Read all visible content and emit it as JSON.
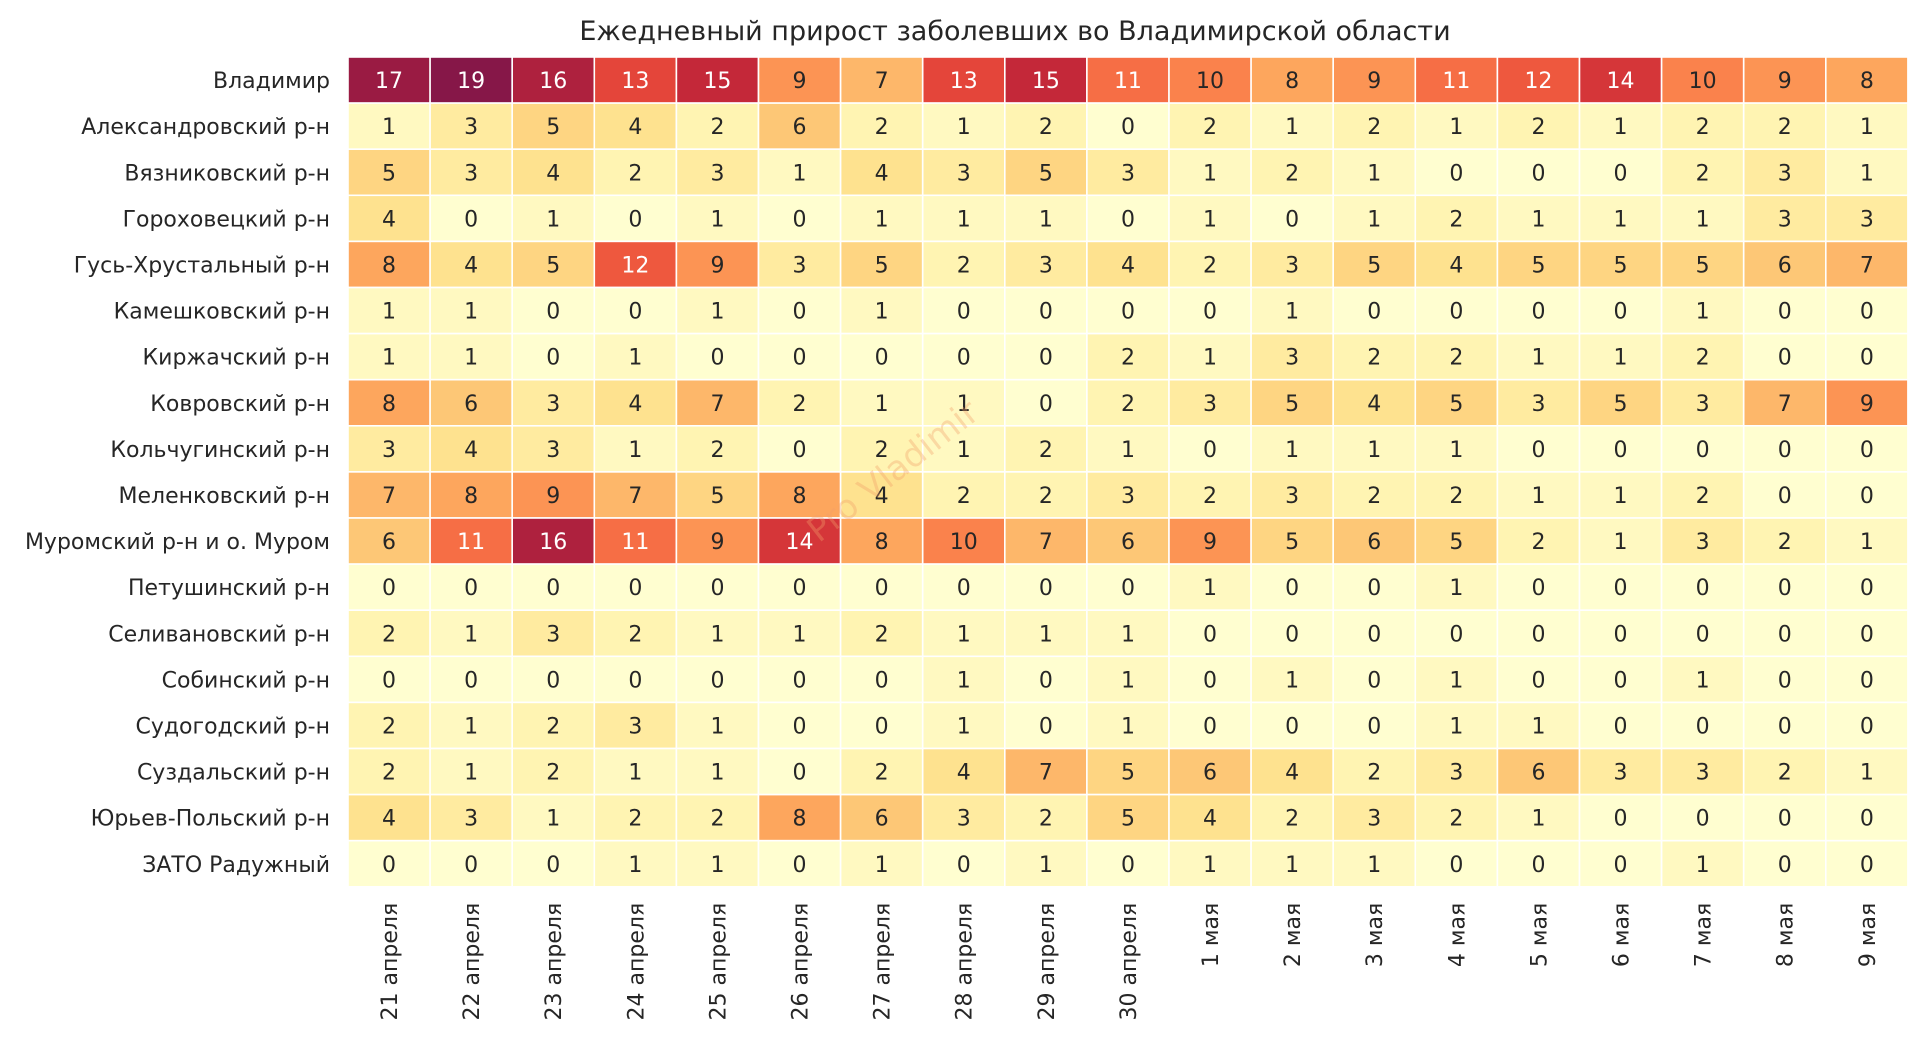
{
  "chart_data": {
    "type": "heatmap",
    "title": "Ежедневный прирост заболевших во Владимирской области",
    "watermark": "Pro Vladimir",
    "color_scale": {
      "min": 0,
      "max": 19,
      "stops": [
        "#fffed0",
        "#fff3b0",
        "#fee08b",
        "#fdc272",
        "#fd9f58",
        "#f97748",
        "#e94a3a",
        "#c92a38",
        "#9b1b43",
        "#861748"
      ]
    },
    "columns": [
      "21 апреля",
      "22 апреля",
      "23 апреля",
      "24 апреля",
      "25 апреля",
      "26 апреля",
      "27 апреля",
      "28 апреля",
      "29 апреля",
      "30 апреля",
      "1 мая",
      "2 мая",
      "3 мая",
      "4 мая",
      "5 мая",
      "6 мая",
      "7 мая",
      "8 мая",
      "9 мая"
    ],
    "rows": [
      "Владимир",
      "Александровский р-н",
      "Вязниковский р-н",
      "Гороховецкий р-н",
      "Гусь-Хрустальный р-н",
      "Камешковский р-н",
      "Киржачский р-н",
      "Ковровский р-н",
      "Кольчугинский р-н",
      "Меленковский р-н",
      "Муромский р-н и о. Муром",
      "Петушинский р-н",
      "Селивановский р-н",
      "Собинский р-н",
      "Судогодский р-н",
      "Суздальский р-н",
      "Юрьев-Польский р-н",
      "ЗАТО Радужный"
    ],
    "values": [
      [
        17,
        19,
        16,
        13,
        15,
        9,
        7,
        13,
        15,
        11,
        10,
        8,
        9,
        11,
        12,
        14,
        10,
        9,
        8
      ],
      [
        1,
        3,
        5,
        4,
        2,
        6,
        2,
        1,
        2,
        0,
        2,
        1,
        2,
        1,
        2,
        1,
        2,
        2,
        1
      ],
      [
        5,
        3,
        4,
        2,
        3,
        1,
        4,
        3,
        5,
        3,
        1,
        2,
        1,
        0,
        0,
        0,
        2,
        3,
        1
      ],
      [
        4,
        0,
        1,
        0,
        1,
        0,
        1,
        1,
        1,
        0,
        1,
        0,
        1,
        2,
        1,
        1,
        1,
        3,
        3
      ],
      [
        8,
        4,
        5,
        12,
        9,
        3,
        5,
        2,
        3,
        4,
        2,
        3,
        5,
        4,
        5,
        5,
        5,
        6,
        7
      ],
      [
        1,
        1,
        0,
        0,
        1,
        0,
        1,
        0,
        0,
        0,
        0,
        1,
        0,
        0,
        0,
        0,
        1,
        0,
        0
      ],
      [
        1,
        1,
        0,
        1,
        0,
        0,
        0,
        0,
        0,
        2,
        1,
        3,
        2,
        2,
        1,
        1,
        2,
        0,
        0
      ],
      [
        8,
        6,
        3,
        4,
        7,
        2,
        1,
        1,
        0,
        2,
        3,
        5,
        4,
        5,
        3,
        5,
        3,
        7,
        9
      ],
      [
        3,
        4,
        3,
        1,
        2,
        0,
        2,
        1,
        2,
        1,
        0,
        1,
        1,
        1,
        0,
        0,
        0,
        0,
        0
      ],
      [
        7,
        8,
        9,
        7,
        5,
        8,
        4,
        2,
        2,
        3,
        2,
        3,
        2,
        2,
        1,
        1,
        2,
        0,
        0
      ],
      [
        6,
        11,
        16,
        11,
        9,
        14,
        8,
        10,
        7,
        6,
        9,
        5,
        6,
        5,
        2,
        1,
        3,
        2,
        1
      ],
      [
        0,
        0,
        0,
        0,
        0,
        0,
        0,
        0,
        0,
        0,
        1,
        0,
        0,
        1,
        0,
        0,
        0,
        0,
        0
      ],
      [
        2,
        1,
        3,
        2,
        1,
        1,
        2,
        1,
        1,
        1,
        0,
        0,
        0,
        0,
        0,
        0,
        0,
        0,
        0
      ],
      [
        0,
        0,
        0,
        0,
        0,
        0,
        0,
        1,
        0,
        1,
        0,
        1,
        0,
        1,
        0,
        0,
        1,
        0,
        0
      ],
      [
        2,
        1,
        2,
        3,
        1,
        0,
        0,
        1,
        0,
        1,
        0,
        0,
        0,
        1,
        1,
        0,
        0,
        0,
        0
      ],
      [
        2,
        1,
        2,
        1,
        1,
        0,
        2,
        4,
        7,
        5,
        6,
        4,
        2,
        3,
        6,
        3,
        3,
        2,
        1
      ],
      [
        4,
        3,
        1,
        2,
        2,
        8,
        6,
        3,
        2,
        5,
        4,
        2,
        3,
        2,
        1,
        0,
        0,
        0,
        0
      ],
      [
        0,
        0,
        0,
        1,
        1,
        0,
        1,
        0,
        1,
        0,
        1,
        1,
        1,
        0,
        0,
        0,
        1,
        0,
        0
      ]
    ]
  }
}
